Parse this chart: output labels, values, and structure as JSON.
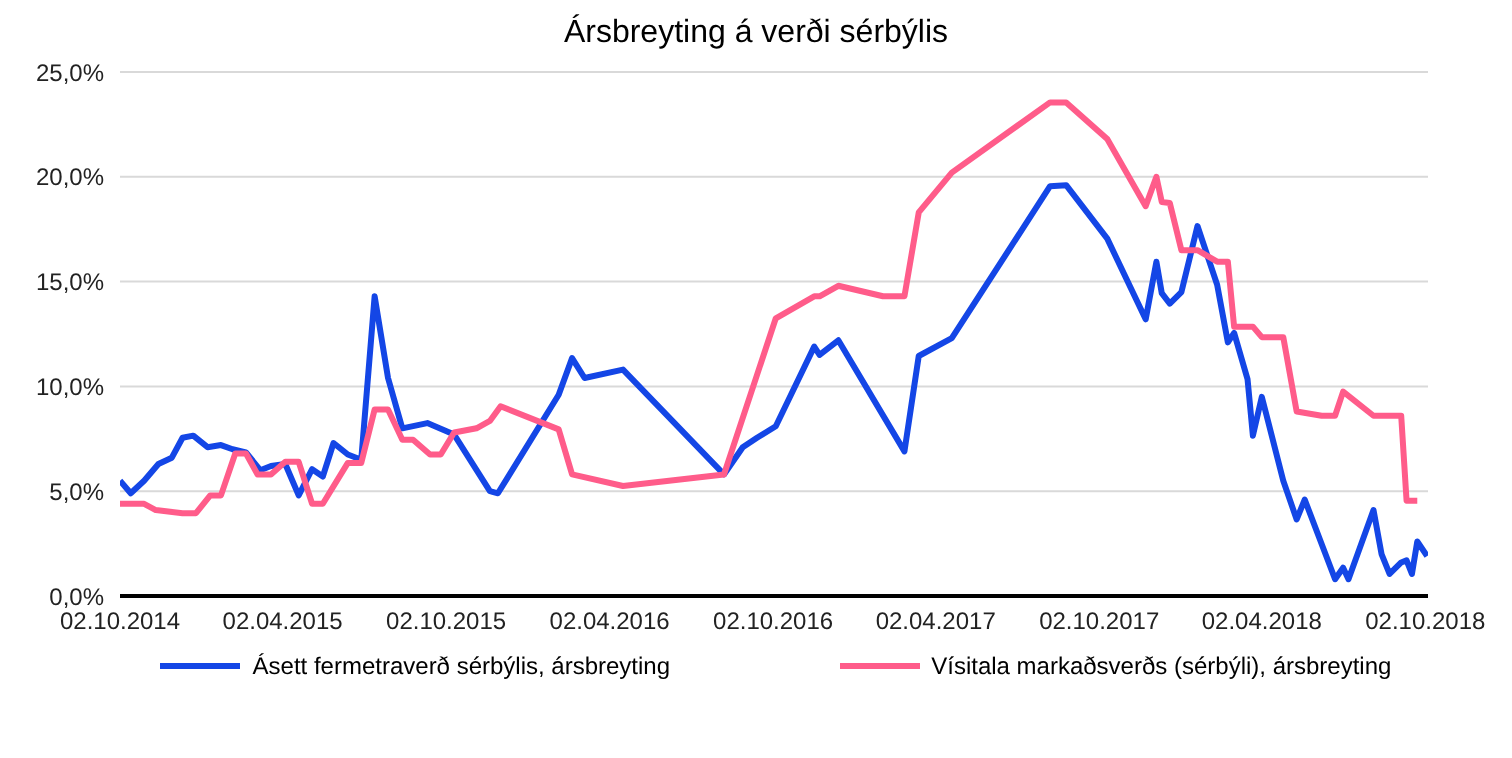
{
  "chart_data": {
    "type": "line",
    "title": "Ársbreyting á verði sérbýlis",
    "series": [
      {
        "name": "Ásett fermetraverð sérbýlis, ársbreyting",
        "color": "#1446e6",
        "x": [
          "2014-10-02",
          "2014-10-14",
          "2014-10-29",
          "2014-11-14",
          "2014-11-29",
          "2014-12-11",
          "2014-12-23",
          "2015-01-08",
          "2015-01-23",
          "2015-02-05",
          "2015-02-20",
          "2015-03-08",
          "2015-03-20",
          "2015-04-05",
          "2015-04-20",
          "2015-05-05",
          "2015-05-17",
          "2015-05-29",
          "2015-06-14",
          "2015-06-29",
          "2015-07-14",
          "2015-07-29",
          "2015-08-14",
          "2015-09-11",
          "2015-10-11",
          "2015-11-20",
          "2015-11-29",
          "2016-02-05",
          "2016-02-20",
          "2016-03-05",
          "2016-04-17",
          "2016-08-08",
          "2016-08-29",
          "2016-09-14",
          "2016-10-05",
          "2016-11-17",
          "2016-11-23",
          "2016-12-14",
          "2017-02-26",
          "2017-03-14",
          "2017-04-20",
          "2017-08-08",
          "2017-08-26",
          "2017-10-11",
          "2017-11-23",
          "2017-12-05",
          "2017-12-11",
          "2017-12-20",
          "2018-01-02",
          "2018-01-20",
          "2018-02-11",
          "2018-02-23",
          "2018-03-02",
          "2018-03-17",
          "2018-03-23",
          "2018-04-02",
          "2018-04-26",
          "2018-05-11",
          "2018-05-20",
          "2018-06-23",
          "2018-07-02",
          "2018-07-08",
          "2018-08-05",
          "2018-08-14",
          "2018-08-23",
          "2018-09-05",
          "2018-09-11",
          "2018-09-17",
          "2018-09-23",
          "2018-10-04"
        ],
        "values": [
          5.5,
          4.9,
          5.5,
          6.3,
          6.6,
          7.55,
          7.65,
          7.1,
          7.2,
          7.0,
          6.85,
          6.0,
          6.2,
          6.3,
          4.8,
          6.05,
          5.7,
          7.3,
          6.75,
          6.5,
          14.3,
          10.4,
          8.0,
          8.25,
          7.7,
          5.0,
          4.9,
          9.6,
          11.35,
          10.4,
          10.8,
          5.8,
          7.1,
          7.55,
          8.1,
          11.9,
          11.5,
          12.2,
          6.9,
          11.45,
          12.3,
          19.55,
          19.6,
          17.05,
          13.2,
          15.95,
          14.45,
          13.95,
          14.5,
          17.65,
          14.85,
          12.1,
          12.55,
          10.35,
          7.65,
          9.5,
          5.5,
          3.65,
          4.6,
          0.8,
          1.35,
          0.8,
          4.1,
          2.0,
          1.05,
          1.6,
          1.7,
          1.05,
          2.6,
          1.9
        ]
      },
      {
        "name": "Vísitala markaðsverðs (sérbýli), ársbreyting",
        "color": "#ff5c8a",
        "x": [
          "2014-10-02",
          "2014-10-29",
          "2014-11-11",
          "2014-12-11",
          "2014-12-26",
          "2015-01-11",
          "2015-01-23",
          "2015-02-08",
          "2015-02-20",
          "2015-03-05",
          "2015-03-20",
          "2015-04-05",
          "2015-04-20",
          "2015-05-05",
          "2015-05-17",
          "2015-06-14",
          "2015-06-29",
          "2015-07-14",
          "2015-07-29",
          "2015-08-14",
          "2015-08-26",
          "2015-09-14",
          "2015-09-26",
          "2015-10-11",
          "2015-11-05",
          "2015-11-20",
          "2015-12-02",
          "2016-02-05",
          "2016-02-20",
          "2016-04-17",
          "2016-08-08",
          "2016-09-14",
          "2016-10-05",
          "2016-11-17",
          "2016-11-23",
          "2016-12-14",
          "2017-02-02",
          "2017-02-26",
          "2017-03-14",
          "2017-04-20",
          "2017-08-08",
          "2017-08-26",
          "2017-10-11",
          "2017-11-23",
          "2017-12-05",
          "2017-12-11",
          "2017-12-20",
          "2018-01-02",
          "2018-01-20",
          "2018-02-11",
          "2018-02-23",
          "2018-03-02",
          "2018-03-23",
          "2018-04-02",
          "2018-04-26",
          "2018-05-11",
          "2018-06-08",
          "2018-06-23",
          "2018-07-02",
          "2018-08-05",
          "2018-09-05",
          "2018-09-11",
          "2018-09-23"
        ],
        "values": [
          4.4,
          4.4,
          4.1,
          3.95,
          3.95,
          4.8,
          4.8,
          6.8,
          6.8,
          5.8,
          5.8,
          6.4,
          6.4,
          4.4,
          4.4,
          6.35,
          6.35,
          8.9,
          8.9,
          7.45,
          7.45,
          6.75,
          6.75,
          7.8,
          8.0,
          8.35,
          9.05,
          7.95,
          5.8,
          5.25,
          5.8,
          10.55,
          13.25,
          14.3,
          14.3,
          14.8,
          14.3,
          14.3,
          18.3,
          20.2,
          23.55,
          23.55,
          21.8,
          18.6,
          20.0,
          18.8,
          18.75,
          16.5,
          16.5,
          15.95,
          15.95,
          12.85,
          12.85,
          12.35,
          12.35,
          8.8,
          8.6,
          8.6,
          9.75,
          8.6,
          8.6,
          4.55,
          4.55
        ]
      }
    ],
    "xlim": [
      "2014-10-02",
      "2018-10-05"
    ],
    "xticks": [
      {
        "value": "2014-10-02",
        "label": "02.10.2014"
      },
      {
        "value": "2015-04-02",
        "label": "02.04.2015"
      },
      {
        "value": "2015-10-02",
        "label": "02.10.2015"
      },
      {
        "value": "2016-04-02",
        "label": "02.04.2016"
      },
      {
        "value": "2016-10-02",
        "label": "02.10.2016"
      },
      {
        "value": "2017-04-02",
        "label": "02.04.2017"
      },
      {
        "value": "2017-10-02",
        "label": "02.10.2017"
      },
      {
        "value": "2018-04-02",
        "label": "02.04.2018"
      },
      {
        "value": "2018-10-02",
        "label": "02.10.2018"
      }
    ],
    "ylim": [
      0,
      25
    ],
    "yticks": [
      {
        "value": 0,
        "label": "0,0%"
      },
      {
        "value": 5,
        "label": "5,0%"
      },
      {
        "value": 10,
        "label": "10,0%"
      },
      {
        "value": 15,
        "label": "15,0%"
      },
      {
        "value": 20,
        "label": "20,0%"
      },
      {
        "value": 25,
        "label": "25,0%"
      }
    ],
    "grid": "y",
    "legend": "bottom",
    "marker": "none",
    "line_style": "solid"
  }
}
